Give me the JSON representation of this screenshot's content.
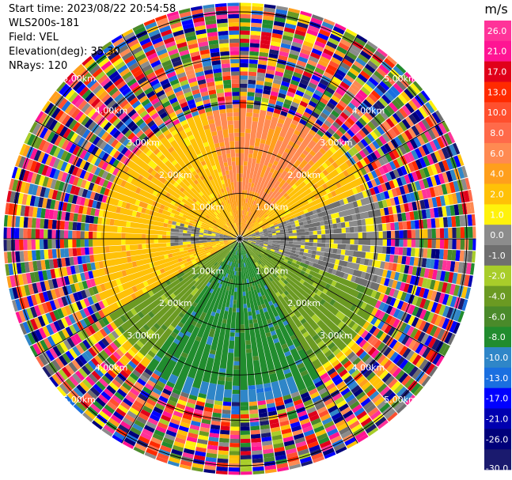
{
  "header": {
    "start_time": "Start time: 2023/08/22 20:54:58",
    "instrument": "WLS200s-181",
    "field": "Field: VEL",
    "elevation": "Elevation(deg): 35.30",
    "nrays": "NRays: 120"
  },
  "chart_data": {
    "type": "ppi",
    "field": "VEL",
    "n_rays": 120,
    "range_ring_labels": [
      "1.00km",
      "2.00km",
      "3.00km",
      "4.00km",
      "5.00km"
    ],
    "range_rings_km": [
      1,
      2,
      3,
      4,
      5
    ],
    "max_range_km": 5.2,
    "spoke_azimuths_deg": [
      0,
      30,
      60,
      90,
      120,
      150,
      180,
      210,
      240,
      270,
      300,
      330
    ],
    "valid_range_km": {
      "east_west": 3.2,
      "north": 2.85,
      "south": 3.6
    },
    "sector_velocity_ms": [
      {
        "azimuth_from_deg": 240,
        "azimuth_to_deg": 300,
        "range_from_km": 0.0,
        "range_to_km": 3.2,
        "velocity": 3.0
      },
      {
        "azimuth_from_deg": 300,
        "azimuth_to_deg": 345,
        "range_from_km": 0.0,
        "range_to_km": 3.0,
        "velocity": 3.0
      },
      {
        "azimuth_from_deg": 345,
        "azimuth_to_deg": 45,
        "range_from_km": 0.0,
        "range_to_km": 1.0,
        "velocity": 5.0
      },
      {
        "azimuth_from_deg": 345,
        "azimuth_to_deg": 45,
        "range_from_km": 1.0,
        "range_to_km": 2.9,
        "velocity": 6.5
      },
      {
        "azimuth_from_deg": 45,
        "azimuth_to_deg": 70,
        "range_from_km": 0.0,
        "range_to_km": 3.0,
        "velocity": 3.0
      },
      {
        "azimuth_from_deg": 70,
        "azimuth_to_deg": 110,
        "range_from_km": 0.0,
        "range_to_km": 3.2,
        "velocity": 0.2
      },
      {
        "azimuth_from_deg": 110,
        "azimuth_to_deg": 150,
        "range_from_km": 0.0,
        "range_to_km": 3.3,
        "velocity": -3.0
      },
      {
        "azimuth_from_deg": 150,
        "azimuth_to_deg": 215,
        "range_from_km": 0.0,
        "range_to_km": 3.6,
        "velocity": -7.0
      },
      {
        "azimuth_from_deg": 215,
        "azimuth_to_deg": 240,
        "range_from_km": 0.0,
        "range_to_km": 3.3,
        "velocity": -3.0
      },
      {
        "azimuth_from_deg": 265,
        "azimuth_to_deg": 285,
        "range_from_km": 0.0,
        "range_to_km": 1.5,
        "velocity": 0.2
      },
      {
        "azimuth_from_deg": 160,
        "azimuth_to_deg": 200,
        "range_from_km": 3.2,
        "range_to_km": 3.6,
        "velocity": -9.0
      }
    ],
    "colorbar": {
      "unit": "m/s",
      "tick_labels": [
        "26.0",
        "21.0",
        "17.0",
        "13.0",
        "10.0",
        "8.0",
        "6.0",
        "4.0",
        "2.0",
        "1.0",
        "0.0",
        "-1.0",
        "-2.0",
        "-4.0",
        "-6.0",
        "-8.0",
        "-10.0",
        "-13.0",
        "-17.0",
        "-21.0",
        "-26.0",
        "-30.0"
      ],
      "bins": [
        {
          "min": 26,
          "max": 30,
          "color": "#ff3399"
        },
        {
          "min": 21,
          "max": 26,
          "color": "#ff1493"
        },
        {
          "min": 17,
          "max": 21,
          "color": "#e0001a"
        },
        {
          "min": 13,
          "max": 17,
          "color": "#ff2a00"
        },
        {
          "min": 10,
          "max": 13,
          "color": "#ff4f2e"
        },
        {
          "min": 8,
          "max": 10,
          "color": "#ff6a4a"
        },
        {
          "min": 6,
          "max": 8,
          "color": "#ff8a52"
        },
        {
          "min": 4,
          "max": 6,
          "color": "#ff9f1c"
        },
        {
          "min": 2,
          "max": 4,
          "color": "#ffc107"
        },
        {
          "min": 1,
          "max": 2,
          "color": "#fff20c"
        },
        {
          "min": 0,
          "max": 1,
          "color": "#8c8c8c"
        },
        {
          "min": -1,
          "max": 0,
          "color": "#6f6f6f"
        },
        {
          "min": -2,
          "max": -1,
          "color": "#a8cd2a"
        },
        {
          "min": -4,
          "max": -2,
          "color": "#6b9a22"
        },
        {
          "min": -6,
          "max": -4,
          "color": "#4a8a2a"
        },
        {
          "min": -8,
          "max": -6,
          "color": "#218c2e"
        },
        {
          "min": -10,
          "max": -8,
          "color": "#2f86c8"
        },
        {
          "min": -13,
          "max": -10,
          "color": "#1a6fe0"
        },
        {
          "min": -17,
          "max": -13,
          "color": "#0000ff"
        },
        {
          "min": -21,
          "max": -17,
          "color": "#0000b0"
        },
        {
          "min": -26,
          "max": -21,
          "color": "#00007a"
        },
        {
          "min": -30,
          "max": -26,
          "color": "#1a1a6e"
        }
      ]
    }
  }
}
